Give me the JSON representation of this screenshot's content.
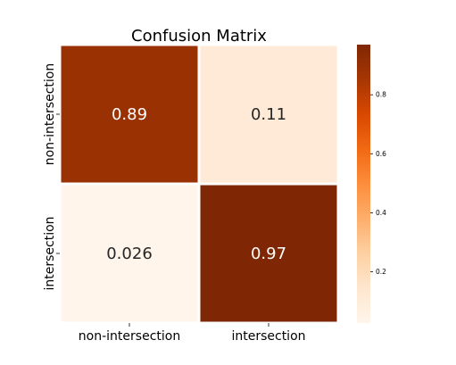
{
  "chart_data": {
    "type": "heatmap",
    "title": "Confusion Matrix",
    "row_labels": [
      "non-intersection",
      "intersection"
    ],
    "col_labels": [
      "non-intersection",
      "intersection"
    ],
    "values": [
      [
        0.89,
        0.11
      ],
      [
        0.026,
        0.97
      ]
    ],
    "value_labels": [
      [
        "0.89",
        "0.11"
      ],
      [
        "0.026",
        "0.97"
      ]
    ],
    "colormap": "Oranges",
    "vmin": 0.026,
    "vmax": 0.97,
    "colorbar_ticks": [
      0.2,
      0.4,
      0.6,
      0.8
    ],
    "colorbar_tick_labels": [
      "0.2",
      "0.4",
      "0.6",
      "0.8"
    ],
    "colors": {
      "light": "#fff5eb",
      "mid": "#fd8d3c",
      "dark": "#7f2704"
    }
  }
}
